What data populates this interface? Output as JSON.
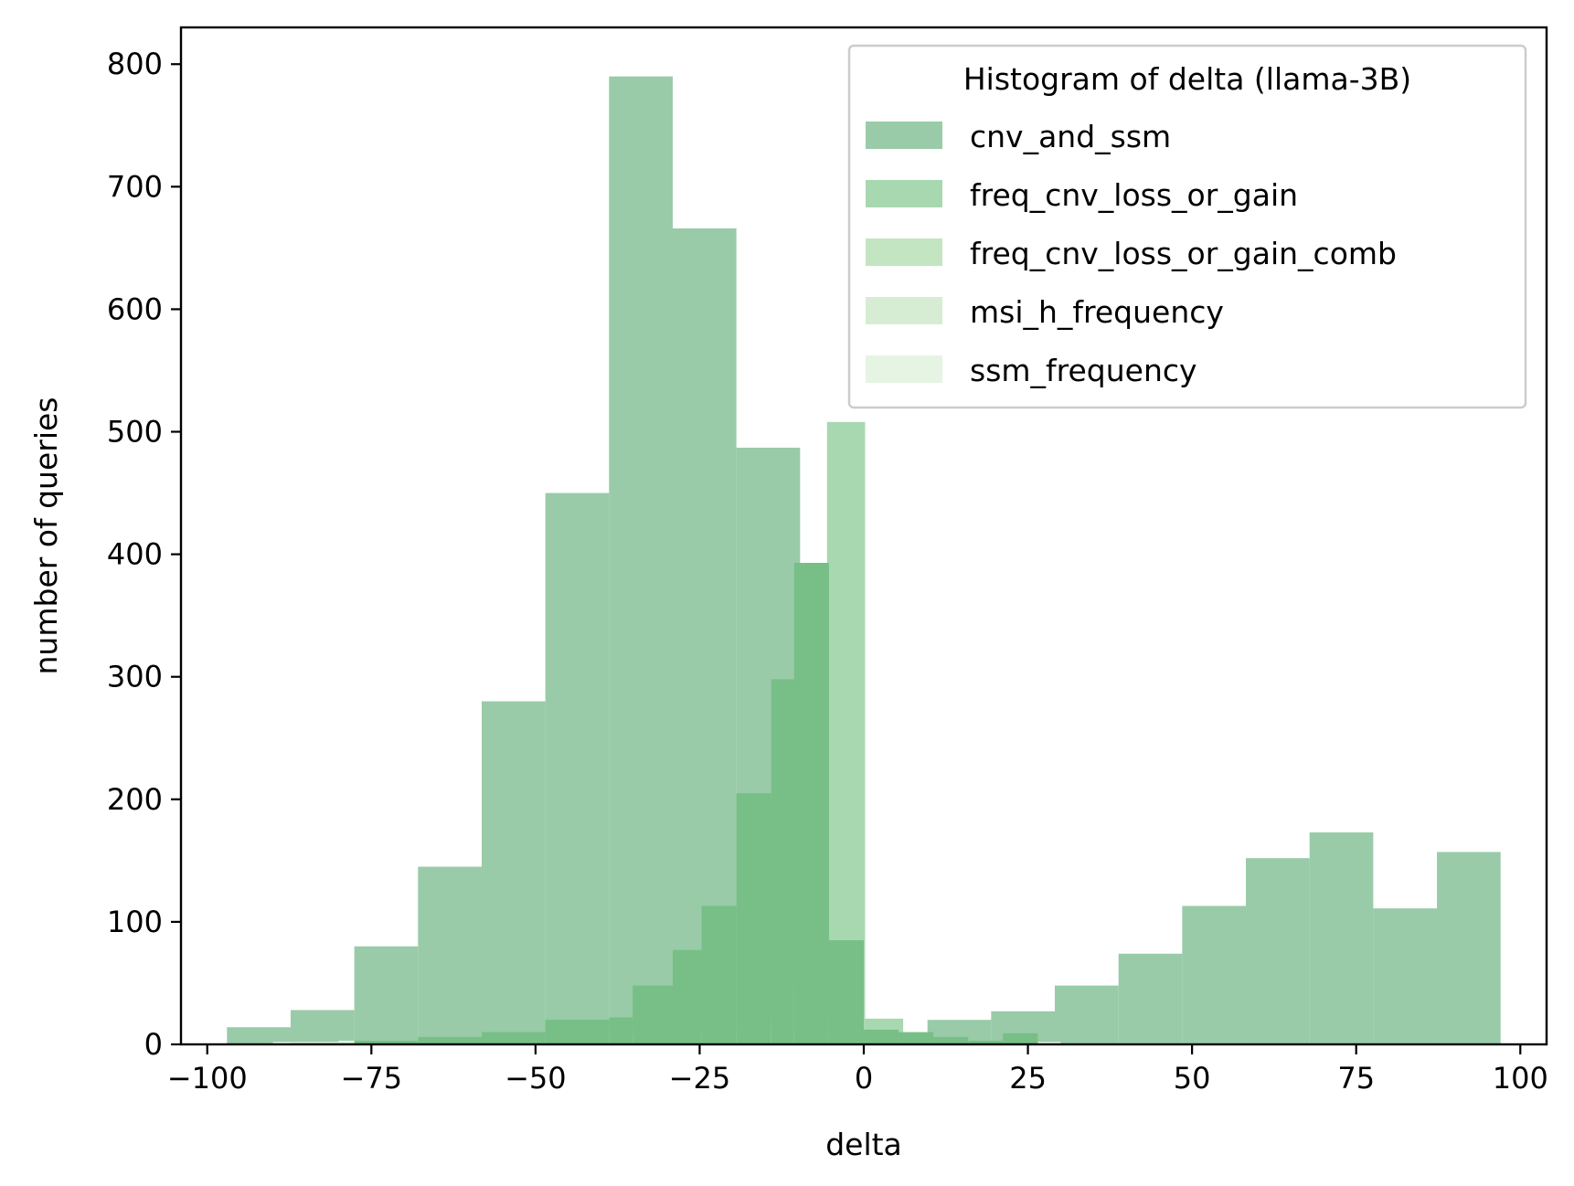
{
  "chart_data": {
    "type": "bar",
    "subtype": "overlaid-histogram",
    "title": "",
    "xlabel": "delta",
    "ylabel": "number of queries",
    "xlim": [
      -104,
      104
    ],
    "ylim": [
      0,
      830
    ],
    "xticks": [
      -100,
      -75,
      -50,
      -25,
      0,
      25,
      50,
      75,
      100
    ],
    "xtick_labels": [
      "−100",
      "−75",
      "−50",
      "−25",
      "0",
      "25",
      "50",
      "75",
      "100"
    ],
    "yticks": [
      0,
      100,
      200,
      300,
      400,
      500,
      600,
      700,
      800
    ],
    "ytick_labels": [
      "0",
      "100",
      "200",
      "300",
      "400",
      "500",
      "600",
      "700",
      "800"
    ],
    "grid": false,
    "legend": {
      "title": "Histogram of delta (llama-3B)",
      "placement": "top-right"
    },
    "series": [
      {
        "name": "cnv_and_ssm",
        "color": "#99cba8",
        "edges": [
          -97,
          -87.3,
          -77.6,
          -67.9,
          -58.2,
          -48.5,
          -38.8,
          -29.1,
          -19.4,
          -9.7,
          0,
          9.7,
          19.4,
          29.1,
          38.8,
          48.5,
          58.2,
          67.9,
          77.6,
          87.3,
          97
        ],
        "values": [
          14,
          28,
          80,
          145,
          280,
          450,
          790,
          666,
          487,
          393,
          2,
          20,
          27,
          48,
          74,
          113,
          152,
          173,
          111,
          157
        ]
      },
      {
        "name": "freq_cnv_loss_or_gain",
        "color": "#a8d8b0",
        "edges": [
          -92,
          -82,
          -72,
          -62,
          -52,
          -42,
          -32,
          -22,
          -12,
          -5.6,
          0.2,
          6
        ],
        "values": [
          1,
          1,
          2,
          3,
          3,
          3,
          4,
          6,
          10,
          508,
          21
        ]
      },
      {
        "name": "freq_cnv_loss_or_gain_comb",
        "color": "#c4e5c2",
        "edges": [
          -38,
          -34,
          -30,
          -26,
          -22,
          -18,
          -14,
          -10,
          -6.2,
          -2,
          2
        ],
        "values": [
          2,
          3,
          5,
          5,
          8,
          18,
          46,
          64,
          5,
          3
        ]
      },
      {
        "name": "msi_h_frequency",
        "color": "#d6edd3",
        "edges": [
          -30,
          -26,
          -22,
          -18,
          -14,
          -10,
          -6,
          -2,
          2
        ],
        "values": [
          2,
          3,
          4,
          6,
          10,
          15,
          20,
          4
        ]
      },
      {
        "name": "ssm_frequency",
        "color": "#e6f4e3",
        "edges": [
          -90,
          -80,
          -70,
          -60,
          -50,
          -40,
          -30,
          -20,
          -10,
          0,
          10,
          20,
          30
        ],
        "values": [
          2,
          3,
          3,
          4,
          5,
          8,
          10,
          12,
          8,
          6,
          3,
          2
        ]
      }
    ],
    "overlap_series": {
      "name": "",
      "color": "#77bf86",
      "edges": [
        -87.3,
        -77.6,
        -67.9,
        -58.2,
        -48.5,
        -38.8,
        -35.2,
        -29.1,
        -24.7,
        -19.4,
        -14.1,
        -10.6,
        -5.3,
        0,
        5.3,
        10.6,
        15.9,
        21.2,
        26.5,
        28
      ],
      "values": [
        1,
        3,
        6,
        10,
        20,
        22,
        48,
        77,
        113,
        205,
        298,
        393,
        85,
        12,
        10,
        6,
        3,
        9,
        0
      ]
    }
  }
}
